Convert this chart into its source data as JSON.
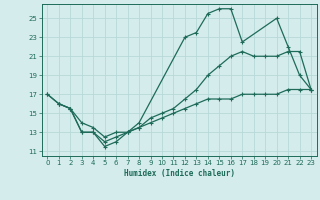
{
  "xlabel": "Humidex (Indice chaleur)",
  "bg_color": "#d4ecec",
  "line_color": "#1e6b5a",
  "grid_color": "#b8d8d8",
  "xlim": [
    -0.5,
    23.5
  ],
  "ylim": [
    10.5,
    26.5
  ],
  "xticks": [
    0,
    1,
    2,
    3,
    4,
    5,
    6,
    7,
    8,
    9,
    10,
    11,
    12,
    13,
    14,
    15,
    16,
    17,
    18,
    19,
    20,
    21,
    22,
    23
  ],
  "yticks": [
    11,
    13,
    15,
    17,
    19,
    21,
    23,
    25
  ],
  "line1_x": [
    0,
    1,
    2,
    3,
    4,
    5,
    6,
    7,
    8,
    12,
    13,
    14,
    15,
    16,
    17,
    20,
    21,
    22,
    23
  ],
  "line1_y": [
    17,
    16,
    15.5,
    13,
    13,
    12,
    12.5,
    13,
    14,
    23,
    23.5,
    25.5,
    26,
    26,
    22.5,
    25,
    22,
    19,
    17.5
  ],
  "line2_x": [
    0,
    1,
    2,
    3,
    4,
    5,
    6,
    7,
    8,
    9,
    10,
    11,
    12,
    13,
    14,
    15,
    16,
    17,
    18,
    19,
    20,
    21,
    22,
    23
  ],
  "line2_y": [
    17,
    16,
    15.5,
    13,
    13,
    11.5,
    12,
    13,
    13.5,
    14.5,
    15,
    15.5,
    16.5,
    17.5,
    19,
    20,
    21,
    21.5,
    21,
    21,
    21,
    21.5,
    21.5,
    17.5
  ],
  "line3_x": [
    1,
    2,
    3,
    4,
    5,
    6,
    7,
    8,
    9,
    10,
    11,
    12,
    13,
    14,
    15,
    16,
    17,
    18,
    19,
    20,
    21,
    22,
    23
  ],
  "line3_y": [
    16,
    15.5,
    14,
    13.5,
    12.5,
    13,
    13,
    13.5,
    14,
    14.5,
    15,
    15.5,
    16,
    16.5,
    16.5,
    16.5,
    17,
    17,
    17,
    17,
    17.5,
    17.5,
    17.5
  ]
}
